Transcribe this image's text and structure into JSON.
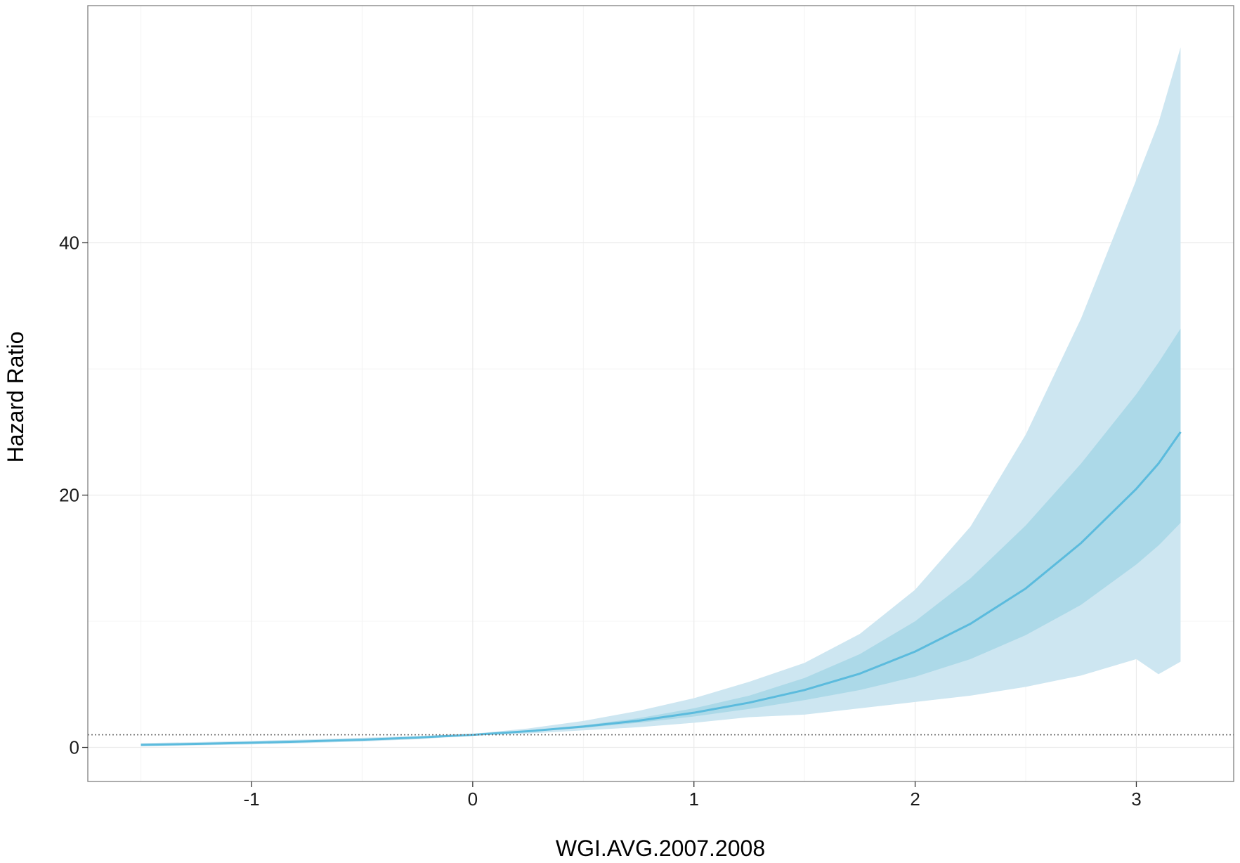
{
  "chart_data": {
    "type": "area",
    "xlabel": "WGI.AVG.2007.2008",
    "ylabel": "Hazard Ratio",
    "xlim": [
      -1.74,
      3.44
    ],
    "ylim": [
      -2.7,
      58.8
    ],
    "x_ticks": [
      -1,
      0,
      1,
      2,
      3
    ],
    "x_tick_labels": [
      "-1",
      "0",
      "1",
      "2",
      "3"
    ],
    "y_ticks": [
      0,
      20,
      40
    ],
    "y_tick_labels": [
      "0",
      "20",
      "40"
    ],
    "grid": true,
    "reference_line": {
      "y": 1,
      "style": "dotted"
    },
    "colors": {
      "line": "#5bbbdd",
      "band_inner": "#acd9e8",
      "band_outer": "#cde6f1",
      "reference": "#666666",
      "grid": "#ebebeb",
      "frame": "#7f7f7f"
    },
    "series": [
      {
        "x": [
          -1.5,
          -1.25,
          -1.0,
          -0.75,
          -0.5,
          -0.25,
          0.0,
          0.25,
          0.5,
          0.75,
          1.0,
          1.25,
          1.5,
          1.75,
          2.0,
          2.25,
          2.5,
          2.75,
          3.0,
          3.1,
          3.2
        ],
        "y": [
          0.2,
          0.28,
          0.37,
          0.48,
          0.61,
          0.78,
          1.0,
          1.28,
          1.65,
          2.12,
          2.75,
          3.55,
          4.55,
          5.85,
          7.6,
          9.8,
          12.6,
          16.2,
          20.5,
          22.5,
          25.0
        ],
        "band_inner_lower": [
          0.17,
          0.24,
          0.33,
          0.44,
          0.57,
          0.74,
          0.97,
          1.22,
          1.55,
          1.95,
          2.45,
          3.05,
          3.75,
          4.55,
          5.6,
          7.0,
          8.9,
          11.3,
          14.5,
          16.0,
          17.8
        ],
        "band_inner_upper": [
          0.24,
          0.32,
          0.41,
          0.52,
          0.65,
          0.82,
          1.03,
          1.34,
          1.76,
          2.32,
          3.1,
          4.1,
          5.5,
          7.4,
          10.0,
          13.4,
          17.6,
          22.5,
          28.0,
          30.5,
          33.2
        ],
        "band_outer_lower": [
          0.1,
          0.16,
          0.24,
          0.34,
          0.47,
          0.65,
          0.93,
          1.1,
          1.35,
          1.6,
          1.95,
          2.4,
          2.6,
          3.1,
          3.6,
          4.1,
          4.8,
          5.7,
          7.0,
          5.8,
          6.8
        ],
        "band_outer_upper": [
          0.34,
          0.42,
          0.52,
          0.63,
          0.76,
          0.91,
          1.08,
          1.5,
          2.1,
          2.9,
          3.9,
          5.2,
          6.7,
          9.0,
          12.5,
          17.5,
          24.8,
          34.0,
          45.0,
          49.5,
          55.5
        ]
      }
    ]
  }
}
